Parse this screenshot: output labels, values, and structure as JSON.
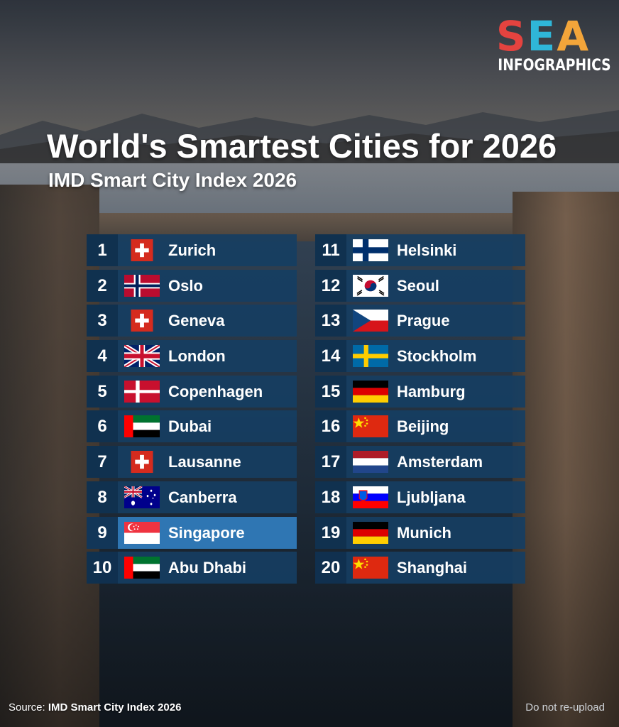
{
  "brand": {
    "mark_letters": [
      "S",
      "E",
      "A"
    ],
    "sub": "INFOGRAPHICS"
  },
  "title": "World's Smartest Cities for 2026",
  "subtitle": "IMD Smart City Index 2026",
  "rankings_left": [
    {
      "rank": "1",
      "city": "Zurich",
      "flag": "switzerland-flag"
    },
    {
      "rank": "2",
      "city": "Oslo",
      "flag": "norway-flag"
    },
    {
      "rank": "3",
      "city": "Geneva",
      "flag": "switzerland-flag"
    },
    {
      "rank": "4",
      "city": "London",
      "flag": "uk-flag"
    },
    {
      "rank": "5",
      "city": "Copenhagen",
      "flag": "denmark-flag"
    },
    {
      "rank": "6",
      "city": "Dubai",
      "flag": "uae-flag"
    },
    {
      "rank": "7",
      "city": "Lausanne",
      "flag": "switzerland-flag"
    },
    {
      "rank": "8",
      "city": "Canberra",
      "flag": "australia-flag"
    },
    {
      "rank": "9",
      "city": "Singapore",
      "flag": "singapore-flag"
    },
    {
      "rank": "10",
      "city": "Abu Dhabi",
      "flag": "uae-flag"
    }
  ],
  "rankings_right": [
    {
      "rank": "11",
      "city": "Helsinki",
      "flag": "finland-flag"
    },
    {
      "rank": "12",
      "city": "Seoul",
      "flag": "south-korea-flag"
    },
    {
      "rank": "13",
      "city": "Prague",
      "flag": "czech-flag"
    },
    {
      "rank": "14",
      "city": "Stockholm",
      "flag": "sweden-flag"
    },
    {
      "rank": "15",
      "city": "Hamburg",
      "flag": "germany-flag"
    },
    {
      "rank": "16",
      "city": "Beijing",
      "flag": "china-flag"
    },
    {
      "rank": "17",
      "city": "Amsterdam",
      "flag": "netherlands-flag"
    },
    {
      "rank": "18",
      "city": "Ljubljana",
      "flag": "slovenia-flag"
    },
    {
      "rank": "19",
      "city": "Munich",
      "flag": "germany-flag"
    },
    {
      "rank": "20",
      "city": "Shanghai",
      "flag": "china-flag"
    }
  ],
  "highlight_color": "#2f76b3",
  "footer": {
    "source_label": "Source:",
    "source_value": "IMD Smart City Index 2026",
    "notice": "Do not re-upload"
  }
}
